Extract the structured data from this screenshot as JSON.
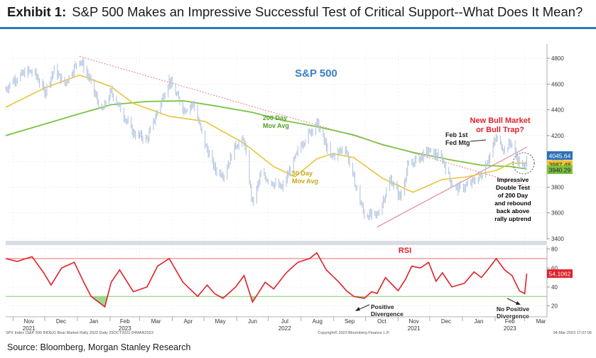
{
  "header": {
    "exhibit_label": "Exhibit 1:",
    "title": "S&P 500 Makes an Impressive Successful Test of Critical Support--What Does It Mean?"
  },
  "footer": {
    "source": "Source: Bloomberg, Morgan Stanley Research",
    "bloomberg_id": "SPX Index (S&P 500 INDEX) Bear Market Rally 2022  Daily 25OCT2021-04MAR2023",
    "copyright": "Copyright© 2023 Bloomberg Finance L.P.",
    "timestamp": "04-Mar-2023  17:07:06"
  },
  "colors": {
    "price": "#b4c6e0",
    "ma200": "#7cc242",
    "ma50": "#e8c53a",
    "downtrend": "#e07a88",
    "uptrend": "#e58a9c",
    "rsi": "#e0202a",
    "rsi_upper": "#f08a8a",
    "rsi_lower": "#8fd47a",
    "title_blue": "#3a7fc4",
    "callout_red": "#e0202a",
    "grid": "#c8c8c8"
  },
  "chart_data": [
    {
      "type": "line",
      "name": "S&P 500 price panel",
      "title": "S&P 500",
      "ylim": [
        3400,
        4900
      ],
      "y_ticks": [
        3400,
        3600,
        3800,
        4000,
        4200,
        4400,
        4600,
        4800
      ],
      "x_month_labels": [
        "Nov",
        "Dec",
        "Jan",
        "Feb",
        "Mar",
        "Apr",
        "May",
        "Jun",
        "Jul",
        "Aug",
        "Sep",
        "Oct",
        "Nov",
        "Dec",
        "Jan",
        "Feb",
        "Mar"
      ],
      "x_year_labels": [
        {
          "label": "2021",
          "month": "Nov"
        },
        {
          "label": "2022",
          "month": "Jul"
        },
        {
          "label": "2023",
          "month": "Feb"
        }
      ],
      "price_series": {
        "dates": [
          "2021-10-25",
          "2021-11-01",
          "2021-11-15",
          "2021-11-22",
          "2021-12-01",
          "2021-12-10",
          "2021-12-20",
          "2022-01-03",
          "2022-01-12",
          "2022-01-24",
          "2022-02-02",
          "2022-02-10",
          "2022-02-23",
          "2022-03-08",
          "2022-03-29",
          "2022-04-12",
          "2022-04-21",
          "2022-05-02",
          "2022-05-12",
          "2022-05-20",
          "2022-05-31",
          "2022-06-08",
          "2022-06-16",
          "2022-06-24",
          "2022-07-06",
          "2022-07-14",
          "2022-08-01",
          "2022-08-16",
          "2022-08-29",
          "2022-09-12",
          "2022-09-20",
          "2022-09-30",
          "2022-10-12",
          "2022-10-17",
          "2022-10-25",
          "2022-11-03",
          "2022-11-10",
          "2022-11-15",
          "2022-11-30",
          "2022-12-13",
          "2022-12-22",
          "2022-12-28",
          "2023-01-05",
          "2023-01-19",
          "2023-02-02",
          "2023-02-10",
          "2023-02-16",
          "2023-02-24",
          "2023-03-01",
          "2023-03-03"
        ],
        "values": [
          4560,
          4630,
          4700,
          4680,
          4540,
          4710,
          4600,
          4796,
          4650,
          4380,
          4540,
          4420,
          4220,
          4170,
          4630,
          4400,
          4450,
          4130,
          3930,
          3900,
          4130,
          4160,
          3670,
          3900,
          3830,
          3790,
          4130,
          4305,
          4030,
          4110,
          3860,
          3585,
          3580,
          3680,
          3860,
          3720,
          3955,
          3990,
          4080,
          4020,
          3820,
          3790,
          3810,
          3890,
          4180,
          4090,
          4150,
          3980,
          3950,
          4045.64
        ]
      },
      "ma200_series": {
        "dates": [
          "2021-10-25",
          "2021-12-01",
          "2022-01-03",
          "2022-02-02",
          "2022-03-08",
          "2022-04-12",
          "2022-05-12",
          "2022-06-16",
          "2022-07-14",
          "2022-08-16",
          "2022-09-20",
          "2022-10-17",
          "2022-11-15",
          "2022-12-22",
          "2023-01-19",
          "2023-02-16",
          "2023-03-03"
        ],
        "values": [
          4200,
          4290,
          4370,
          4440,
          4465,
          4470,
          4430,
          4380,
          4320,
          4270,
          4205,
          4130,
          4070,
          4010,
          3970,
          3960,
          3940.29
        ]
      },
      "ma50_series": {
        "dates": [
          "2021-10-25",
          "2021-12-01",
          "2022-01-03",
          "2022-02-02",
          "2022-02-23",
          "2022-03-29",
          "2022-05-02",
          "2022-06-08",
          "2022-07-06",
          "2022-07-26",
          "2022-08-16",
          "2022-08-31",
          "2022-09-20",
          "2022-10-17",
          "2022-11-15",
          "2022-12-13",
          "2023-01-05",
          "2023-02-02",
          "2023-02-16",
          "2023-03-03"
        ],
        "values": [
          4420,
          4570,
          4670,
          4580,
          4450,
          4350,
          4310,
          4140,
          3960,
          3880,
          4020,
          4060,
          4030,
          3870,
          3760,
          3860,
          3880,
          3930,
          3985,
          3987.48
        ]
      },
      "trendlines": [
        {
          "name": "downtrend",
          "from": {
            "date": "2022-01-03",
            "value": 4815
          },
          "to": {
            "date": "2023-03-03",
            "value": 3810
          }
        },
        {
          "name": "uptrend",
          "from": {
            "date": "2022-10-12",
            "value": 3490
          },
          "to": {
            "date": "2023-03-03",
            "value": 4110
          }
        }
      ],
      "last_values": [
        {
          "label": "4045.64",
          "value": 4045.64,
          "series": "price"
        },
        {
          "label": "3987.48",
          "value": 3987.48,
          "series": "ma50"
        },
        {
          "label": "3940.29",
          "value": 3940.29,
          "series": "ma200"
        }
      ],
      "annotations": {
        "ma200_label": [
          "200 Day",
          "Mov Avg"
        ],
        "ma50_label": [
          "50 Day",
          "Mov Avg"
        ],
        "fed_meeting": [
          "Feb 1st",
          "Fed Mtg"
        ],
        "bull_question": [
          "New Bull Market",
          "or Bull Trap?"
        ],
        "double_test": [
          "Impressive",
          "Double Test",
          "of 200 Day",
          "and rebound",
          "back above",
          "rally uptrend"
        ]
      }
    },
    {
      "type": "line",
      "name": "RSI panel",
      "title": "RSI",
      "ylim": [
        10,
        82
      ],
      "y_ticks": [
        20,
        40,
        60,
        80
      ],
      "overbought": 70,
      "oversold": 30,
      "last_value": {
        "label": "54.1062",
        "value": 54.1062
      },
      "series": {
        "dates": [
          "2021-10-25",
          "2021-11-05",
          "2021-11-19",
          "2021-11-30",
          "2021-12-07",
          "2021-12-17",
          "2021-12-29",
          "2022-01-07",
          "2022-01-14",
          "2022-01-27",
          "2022-02-02",
          "2022-02-10",
          "2022-02-23",
          "2022-03-08",
          "2022-03-18",
          "2022-03-29",
          "2022-04-11",
          "2022-04-25",
          "2022-05-04",
          "2022-05-11",
          "2022-05-19",
          "2022-05-31",
          "2022-06-08",
          "2022-06-16",
          "2022-06-28",
          "2022-07-06",
          "2022-07-18",
          "2022-07-29",
          "2022-08-09",
          "2022-08-16",
          "2022-08-25",
          "2022-09-06",
          "2022-09-13",
          "2022-09-20",
          "2022-09-30",
          "2022-10-07",
          "2022-10-12",
          "2022-10-20",
          "2022-11-01",
          "2022-11-08",
          "2022-11-14",
          "2022-11-22",
          "2022-11-30",
          "2022-12-07",
          "2022-12-13",
          "2022-12-22",
          "2023-01-03",
          "2023-01-12",
          "2023-01-19",
          "2023-01-27",
          "2023-02-02",
          "2023-02-10",
          "2023-02-17",
          "2023-02-24",
          "2023-03-01",
          "2023-03-03"
        ],
        "values": [
          70,
          67,
          72,
          55,
          42,
          60,
          66,
          45,
          30,
          19,
          45,
          58,
          35,
          40,
          62,
          70,
          45,
          30,
          42,
          33,
          28,
          40,
          52,
          24,
          45,
          38,
          55,
          66,
          70,
          76,
          58,
          45,
          36,
          30,
          28,
          35,
          33,
          50,
          36,
          48,
          62,
          60,
          66,
          46,
          55,
          40,
          44,
          56,
          50,
          61,
          70,
          58,
          52,
          36,
          33,
          54.1062
        ]
      },
      "annotations": {
        "positive_divergence": [
          "Positive",
          "Divergence"
        ],
        "no_positive_divergence": [
          "No Positive",
          "Divergence"
        ]
      }
    }
  ]
}
